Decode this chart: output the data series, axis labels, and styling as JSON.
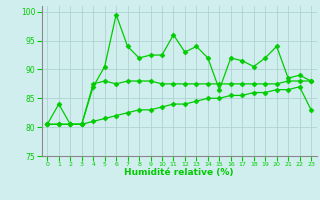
{
  "line1": [
    80.5,
    84,
    80.5,
    80.5,
    87,
    90.5,
    99.5,
    94,
    92,
    92.5,
    92.5,
    96,
    93,
    94,
    92,
    86.5,
    92,
    91.5,
    90.5,
    92,
    94,
    88.5,
    89,
    88
  ],
  "line2": [
    80.5,
    80.5,
    80.5,
    80.5,
    87.5,
    88,
    87.5,
    88,
    88,
    88,
    87.5,
    87.5,
    87.5,
    87.5,
    87.5,
    87.5,
    87.5,
    87.5,
    87.5,
    87.5,
    87.5,
    88,
    88,
    88
  ],
  "line3": [
    80.5,
    80.5,
    80.5,
    80.5,
    81,
    81.5,
    82,
    82.5,
    83,
    83,
    83.5,
    84,
    84,
    84.5,
    85,
    85,
    85.5,
    85.5,
    86,
    86,
    86.5,
    86.5,
    87,
    83
  ],
  "x": [
    0,
    1,
    2,
    3,
    4,
    5,
    6,
    7,
    8,
    9,
    10,
    11,
    12,
    13,
    14,
    15,
    16,
    17,
    18,
    19,
    20,
    21,
    22,
    23
  ],
  "xlabel": "Humidité relative (%)",
  "ylim": [
    75,
    101
  ],
  "xlim": [
    -0.5,
    23.5
  ],
  "yticks": [
    75,
    80,
    85,
    90,
    95,
    100
  ],
  "xticks": [
    0,
    1,
    2,
    3,
    4,
    5,
    6,
    7,
    8,
    9,
    10,
    11,
    12,
    13,
    14,
    15,
    16,
    17,
    18,
    19,
    20,
    21,
    22,
    23
  ],
  "line_color": "#00cc00",
  "bg_color": "#d0eeee",
  "grid_color": "#aacccc",
  "marker": "D",
  "marker_size": 2.5
}
